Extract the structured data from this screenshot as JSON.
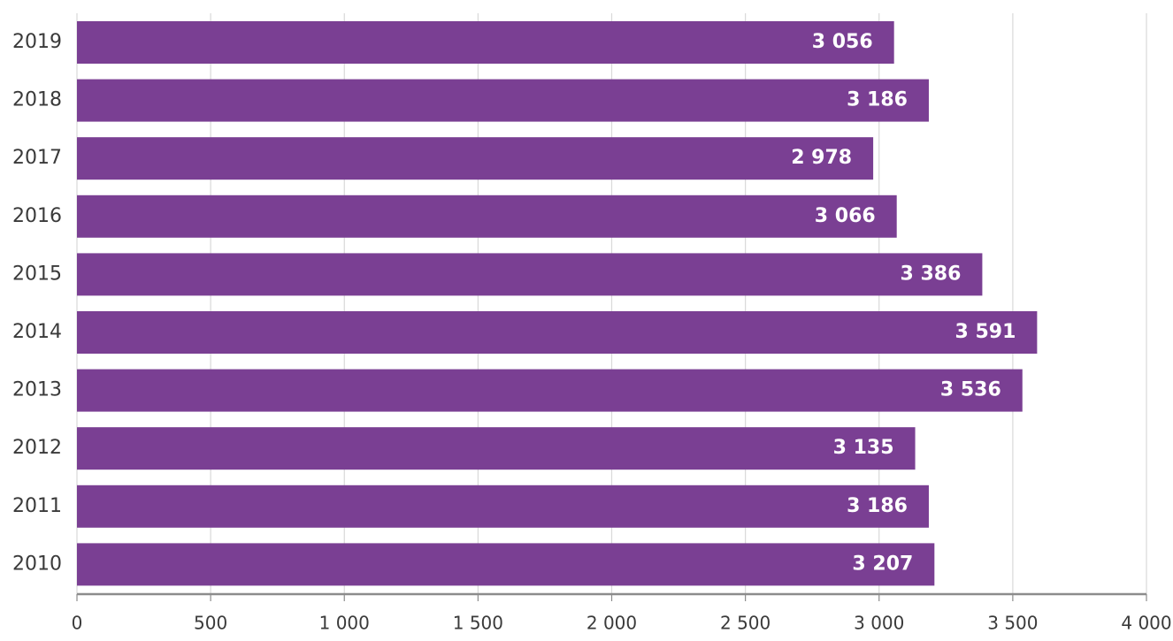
{
  "chart_data": {
    "type": "bar",
    "orientation": "horizontal",
    "categories": [
      "2019",
      "2018",
      "2017",
      "2016",
      "2015",
      "2014",
      "2013",
      "2012",
      "2011",
      "2010"
    ],
    "values": [
      3056,
      3186,
      2978,
      3066,
      3386,
      3591,
      3536,
      3135,
      3186,
      3207
    ],
    "value_labels": [
      "3 056",
      "3 186",
      "2 978",
      "3 066",
      "3 386",
      "3 591",
      "3 536",
      "3 135",
      "3 186",
      "3 207"
    ],
    "xlim": [
      0,
      4000
    ],
    "xticks": [
      0,
      500,
      1000,
      1500,
      2000,
      2500,
      3000,
      3500,
      4000
    ],
    "xtick_labels": [
      "0",
      "500",
      "1 000",
      "1 500",
      "2 000",
      "2 500",
      "3 000",
      "3 500",
      "4 000"
    ],
    "title": "",
    "xlabel": "",
    "ylabel": "",
    "grid": "vertical",
    "bar_color": "#7a3f93",
    "grid_color": "#d9d9d9",
    "axis_color": "#8c8c8c"
  }
}
